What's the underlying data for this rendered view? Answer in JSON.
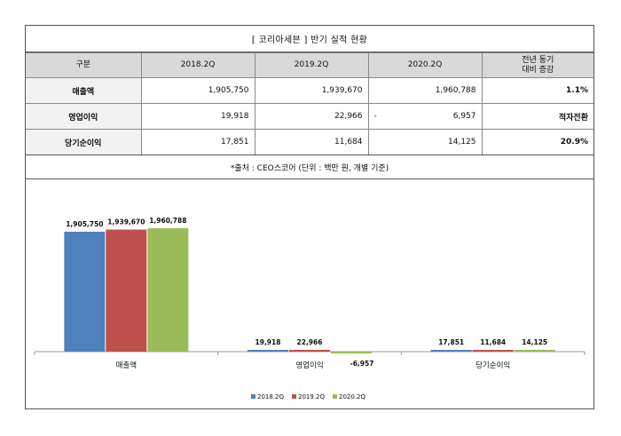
{
  "title": "[ 코리아세븐 ] 반기 실적 현황",
  "table": {
    "headers": [
      "구분",
      "2018.2Q",
      "2019.2Q",
      "2020.2Q"
    ],
    "change_header_line1": "전년 동기",
    "change_header_line2": "대비 증감",
    "rows": [
      {
        "label": "매출액",
        "v2018": "1,905,750",
        "v2019": "1,939,670",
        "v2020": "1,960,788",
        "v2020_prefix": "",
        "change": "1.1%"
      },
      {
        "label": "영업이익",
        "v2018": "19,918",
        "v2019": "22,966",
        "v2020": "6,957",
        "v2020_prefix": "-",
        "change": "적자전환"
      },
      {
        "label": "당기순이익",
        "v2018": "17,851",
        "v2019": "11,684",
        "v2020": "14,125",
        "v2020_prefix": "",
        "change": "20.9%"
      }
    ]
  },
  "source_note": "*출처 : CEO스코어 (단위 : 백만 원, 개별 기준)",
  "chart_data": {
    "type": "bar",
    "categories": [
      "매출액",
      "영업이익",
      "당기순이익"
    ],
    "series": [
      {
        "name": "2018.2Q",
        "values": [
          1905750,
          19918,
          17851
        ],
        "labels": [
          "1,905,750",
          "19,918",
          "17,851"
        ],
        "color": "#4f81bd"
      },
      {
        "name": "2019.2Q",
        "values": [
          1939670,
          22966,
          11684
        ],
        "labels": [
          "1,939,670",
          "22,966",
          "11,684"
        ],
        "color": "#c0504d"
      },
      {
        "name": "2020.2Q",
        "values": [
          1960788,
          -6957,
          14125
        ],
        "labels": [
          "1,960,788",
          "-6,957",
          "14,125"
        ],
        "color": "#9bbb59"
      }
    ],
    "ylim": [
      -60000,
      2300000
    ],
    "legend": "bottom",
    "grid": false
  }
}
